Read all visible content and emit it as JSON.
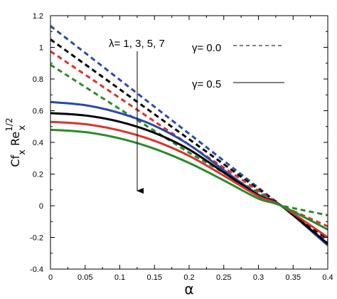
{
  "chart_data": {
    "type": "line",
    "xlabel": "α",
    "ylabel": {
      "base": "Cf",
      "sub1": "x",
      "mid": " Re",
      "sup": "1/2",
      "sub2": "x"
    },
    "xlim": [
      0,
      0.4
    ],
    "ylim": [
      -0.4,
      1.2
    ],
    "xticks": [
      "0",
      "0.05",
      "0.1",
      "0.15",
      "0.2",
      "0.25",
      "0.3",
      "0.35",
      "0.4"
    ],
    "yticks": [
      "-0.4",
      "-0.2",
      "0",
      "0.2",
      "0.4",
      "0.6",
      "0.8",
      "1",
      "1.2"
    ],
    "grid": false,
    "annotations": {
      "lambda_label": "λ= 1, 3, 5, 7",
      "gamma0_label": "γ= 0.0",
      "gamma05_label": "γ= 0.5"
    },
    "colors": {
      "lambda1": "#2a4aa6",
      "lambda3": "#000000",
      "lambda5": "#d8332a",
      "lambda7": "#2a8a2a"
    },
    "series": [
      {
        "lambda": 1,
        "gamma": 0.0,
        "style": "dashed",
        "color": "#2a4aa6",
        "x": [
          0,
          0.1,
          0.2,
          0.333,
          0.4
        ],
        "y": [
          1.135,
          0.795,
          0.455,
          0.0,
          -0.23
        ]
      },
      {
        "lambda": 3,
        "gamma": 0.0,
        "style": "dashed",
        "color": "#000000",
        "x": [
          0,
          0.1,
          0.2,
          0.333,
          0.4
        ],
        "y": [
          1.05,
          0.735,
          0.42,
          0.0,
          -0.21
        ]
      },
      {
        "lambda": 5,
        "gamma": 0.0,
        "style": "dashed",
        "color": "#d8332a",
        "x": [
          0,
          0.1,
          0.2,
          0.333,
          0.4
        ],
        "y": [
          0.975,
          0.68,
          0.385,
          0.0,
          -0.13
        ]
      },
      {
        "lambda": 7,
        "gamma": 0.0,
        "style": "dashed",
        "color": "#2a8a2a",
        "x": [
          0,
          0.1,
          0.2,
          0.333,
          0.4
        ],
        "y": [
          0.89,
          0.61,
          0.335,
          0.0,
          -0.06
        ]
      },
      {
        "lambda": 1,
        "gamma": 0.5,
        "style": "solid",
        "color": "#2a4aa6",
        "x": [
          0,
          0.05,
          0.1,
          0.15,
          0.2,
          0.25,
          0.3,
          0.333,
          0.4
        ],
        "y": [
          0.655,
          0.635,
          0.585,
          0.505,
          0.385,
          0.225,
          0.07,
          0.0,
          -0.25
        ]
      },
      {
        "lambda": 3,
        "gamma": 0.5,
        "style": "solid",
        "color": "#000000",
        "x": [
          0,
          0.05,
          0.1,
          0.15,
          0.2,
          0.25,
          0.3,
          0.333,
          0.4
        ],
        "y": [
          0.585,
          0.57,
          0.53,
          0.46,
          0.355,
          0.21,
          0.065,
          0.0,
          -0.24
        ]
      },
      {
        "lambda": 5,
        "gamma": 0.5,
        "style": "solid",
        "color": "#d8332a",
        "x": [
          0,
          0.05,
          0.1,
          0.15,
          0.2,
          0.25,
          0.3,
          0.333,
          0.4
        ],
        "y": [
          0.53,
          0.515,
          0.475,
          0.41,
          0.315,
          0.19,
          0.06,
          0.0,
          -0.2
        ]
      },
      {
        "lambda": 7,
        "gamma": 0.5,
        "style": "solid",
        "color": "#2a8a2a",
        "x": [
          0,
          0.05,
          0.1,
          0.15,
          0.2,
          0.25,
          0.3,
          0.333,
          0.4
        ],
        "y": [
          0.48,
          0.465,
          0.425,
          0.36,
          0.27,
          0.16,
          0.045,
          0.0,
          -0.15
        ]
      }
    ]
  }
}
